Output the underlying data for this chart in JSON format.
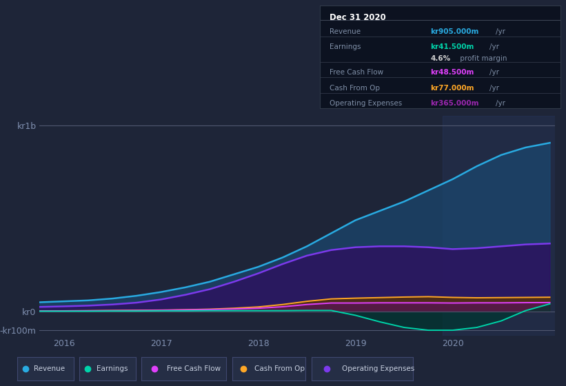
{
  "background_color": "#1e2538",
  "plot_bg_color": "#1e2538",
  "ylabel_top": "kr1b",
  "ylabel_zero": "kr0",
  "ylabel_neg": "-kr100m",
  "x_labels": [
    "2016",
    "2017",
    "2018",
    "2019",
    "2020"
  ],
  "info_box": {
    "title": "Dec 31 2020",
    "rows": [
      {
        "label": "Revenue",
        "value": "kr905.000m",
        "unit": "/yr",
        "value_color": "#29abe2"
      },
      {
        "label": "Earnings",
        "value": "kr41.500m",
        "unit": "/yr",
        "value_color": "#00d4aa"
      },
      {
        "label": "",
        "value": "4.6%",
        "unit": " profit margin",
        "value_color": "#d0d0d0"
      },
      {
        "label": "Free Cash Flow",
        "value": "kr48.500m",
        "unit": "/yr",
        "value_color": "#e040fb"
      },
      {
        "label": "Cash From Op",
        "value": "kr77.000m",
        "unit": "/yr",
        "value_color": "#ffa726"
      },
      {
        "label": "Operating Expenses",
        "value": "kr365.000m",
        "unit": "/yr",
        "value_color": "#9c27b0"
      }
    ]
  },
  "series": {
    "revenue": {
      "line_color": "#29abe2",
      "fill_color": "#1a4870",
      "x": [
        2015.75,
        2016.0,
        2016.25,
        2016.5,
        2016.75,
        2017.0,
        2017.25,
        2017.5,
        2017.75,
        2018.0,
        2018.25,
        2018.5,
        2018.75,
        2019.0,
        2019.25,
        2019.5,
        2019.75,
        2020.0,
        2020.25,
        2020.5,
        2020.75,
        2021.0
      ],
      "y": [
        0.05,
        0.055,
        0.06,
        0.07,
        0.085,
        0.105,
        0.13,
        0.16,
        0.2,
        0.24,
        0.29,
        0.35,
        0.42,
        0.49,
        0.54,
        0.59,
        0.65,
        0.71,
        0.78,
        0.84,
        0.88,
        0.905
      ]
    },
    "operating_expenses": {
      "line_color": "#7c3aed",
      "fill_color": "#2d1060",
      "x": [
        2015.75,
        2016.0,
        2016.25,
        2016.5,
        2016.75,
        2017.0,
        2017.25,
        2017.5,
        2017.75,
        2018.0,
        2018.25,
        2018.5,
        2018.75,
        2019.0,
        2019.25,
        2019.5,
        2019.75,
        2020.0,
        2020.25,
        2020.5,
        2020.75,
        2021.0
      ],
      "y": [
        0.025,
        0.028,
        0.032,
        0.038,
        0.048,
        0.065,
        0.09,
        0.12,
        0.16,
        0.205,
        0.255,
        0.3,
        0.33,
        0.345,
        0.35,
        0.35,
        0.345,
        0.335,
        0.34,
        0.35,
        0.36,
        0.365
      ]
    },
    "cash_from_op": {
      "line_color": "#ffa726",
      "fill_color": "#5a3200",
      "x": [
        2015.75,
        2016.0,
        2016.25,
        2016.5,
        2016.75,
        2017.0,
        2017.25,
        2017.5,
        2017.75,
        2018.0,
        2018.25,
        2018.5,
        2018.75,
        2019.0,
        2019.25,
        2019.5,
        2019.75,
        2020.0,
        2020.25,
        2020.5,
        2020.75,
        2021.0
      ],
      "y": [
        0.004,
        0.004,
        0.005,
        0.006,
        0.007,
        0.008,
        0.01,
        0.013,
        0.018,
        0.025,
        0.038,
        0.055,
        0.068,
        0.072,
        0.075,
        0.078,
        0.08,
        0.076,
        0.074,
        0.075,
        0.076,
        0.077
      ]
    },
    "free_cash_flow": {
      "line_color": "#e040fb",
      "fill_color": "#5a1060",
      "x": [
        2015.75,
        2016.0,
        2016.25,
        2016.5,
        2016.75,
        2017.0,
        2017.25,
        2017.5,
        2017.75,
        2018.0,
        2018.25,
        2018.5,
        2018.75,
        2019.0,
        2019.25,
        2019.5,
        2019.75,
        2020.0,
        2020.25,
        2020.5,
        2020.75,
        2021.0
      ],
      "y": [
        0.003,
        0.003,
        0.004,
        0.005,
        0.006,
        0.007,
        0.009,
        0.011,
        0.014,
        0.018,
        0.026,
        0.038,
        0.046,
        0.046,
        0.047,
        0.047,
        0.047,
        0.046,
        0.047,
        0.047,
        0.048,
        0.0485
      ]
    },
    "earnings": {
      "line_color": "#00d4aa",
      "fill_color": "#003530",
      "x": [
        2015.75,
        2016.0,
        2016.25,
        2016.5,
        2016.75,
        2017.0,
        2017.25,
        2017.5,
        2017.75,
        2018.0,
        2018.25,
        2018.5,
        2018.75,
        2019.0,
        2019.25,
        2019.5,
        2019.75,
        2020.0,
        2020.25,
        2020.5,
        2020.75,
        2021.0
      ],
      "y": [
        0.002,
        0.002,
        0.002,
        0.003,
        0.003,
        0.004,
        0.004,
        0.005,
        0.005,
        0.005,
        0.005,
        0.006,
        0.006,
        -0.02,
        -0.055,
        -0.085,
        -0.1,
        -0.1,
        -0.085,
        -0.05,
        0.005,
        0.0415
      ]
    }
  },
  "legend": [
    {
      "label": "Revenue",
      "color": "#29abe2"
    },
    {
      "label": "Earnings",
      "color": "#00d4aa"
    },
    {
      "label": "Free Cash Flow",
      "color": "#e040fb"
    },
    {
      "label": "Cash From Op",
      "color": "#ffa726"
    },
    {
      "label": "Operating Expenses",
      "color": "#7c3aed"
    }
  ]
}
